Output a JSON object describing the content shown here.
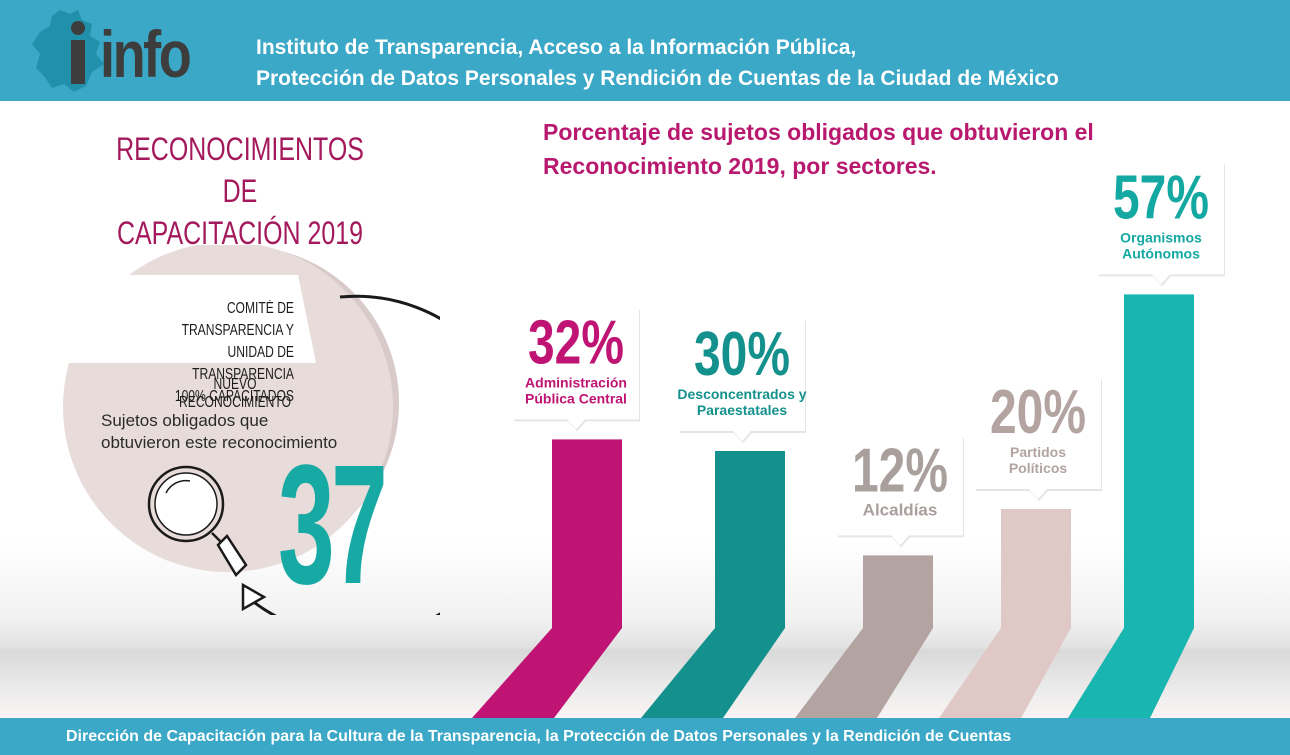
{
  "header": {
    "logo_text": "info",
    "title_line1": "Instituto de Transparencia, Acceso a la Información Pública,",
    "title_line2": "Protección de Datos Personales y Rendición de Cuentas de la Ciudad de México"
  },
  "left": {
    "title_line1": "RECONOCIMIENTOS DE",
    "title_line2": "CAPACITACIÓN 2019",
    "committee_line1": "COMITÉ DE TRANSPARENCIA Y",
    "committee_line2": "UNIDAD DE TRANSPARENCIA",
    "committee_line3": "100% CAPACITADOS",
    "new_recognition": "NUEVO RECONOCIMIENTO",
    "sujetos_line1": "Sujetos obligados que",
    "sujetos_line2": "obtuvieron este reconocimiento",
    "big_number": "37"
  },
  "chart_data": {
    "type": "bar",
    "title_line1": "Porcentaje de sujetos obligados que obtuvieron el",
    "title_line2": "Reconocimiento 2019, por sectores.",
    "categories": [
      "Administración Pública Central",
      "Desconcentrados y Paraestatales",
      "Alcaldías",
      "Partidos Políticos",
      "Organismos Autónomos"
    ],
    "values": [
      32,
      30,
      12,
      20,
      57
    ],
    "value_labels": [
      "32%",
      "30%",
      "12%",
      "20%",
      "57%"
    ],
    "label_lines": [
      [
        "Administración",
        "Pública Central"
      ],
      [
        "Desconcentrados y",
        "Paraestatales"
      ],
      [
        "Alcaldías"
      ],
      [
        "Partidos",
        "Políticos"
      ],
      [
        "Organismos",
        "Autónomos"
      ]
    ],
    "colors": [
      "#bf1473",
      "#14918c",
      "#b3a3a1",
      "#dfc8c6",
      "#19b5b0"
    ],
    "label_colors": [
      "#bf1473",
      "#14918c",
      "#a9a09e",
      "#b3a3a1",
      "#14a8a3"
    ],
    "ylim": [
      0,
      60
    ]
  },
  "footer": {
    "text": "Dirección de Capacitación para la Cultura de la Transparencia, la Protección de Datos Personales y la Rendición de Cuentas"
  }
}
